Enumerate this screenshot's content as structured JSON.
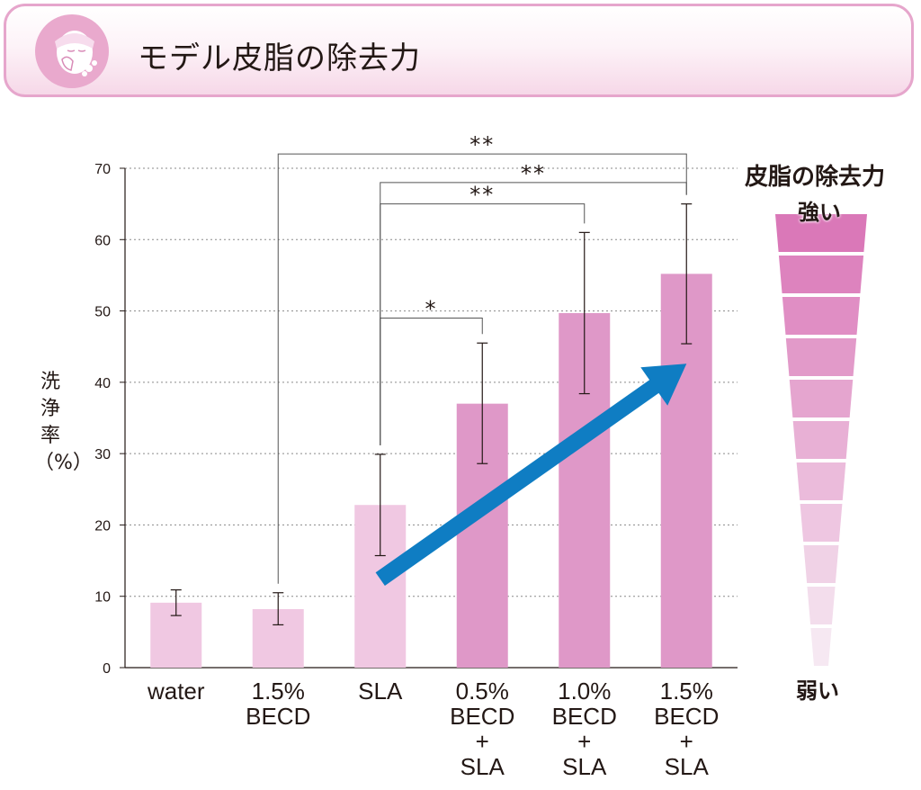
{
  "header": {
    "title": "モデル皮脂の除去力",
    "icon": "face-washing-icon"
  },
  "colors": {
    "header_border": "#e6a6cc",
    "bar_light": "#f0c8e2",
    "bar_dark": "#df98c8",
    "arrow": "#0f7dc3",
    "text": "#231815"
  },
  "chart_data": {
    "type": "bar",
    "ylabel": "洗浄率（%）",
    "ylim": [
      0,
      70
    ],
    "yticks": [
      0,
      10,
      20,
      30,
      40,
      50,
      60,
      70
    ],
    "grid": true,
    "categories": [
      [
        "water"
      ],
      [
        "1.5%",
        "BECD"
      ],
      [
        "SLA"
      ],
      [
        "0.5%",
        "BECD",
        "+",
        "SLA"
      ],
      [
        "1.0%",
        "BECD",
        "+",
        "SLA"
      ],
      [
        "1.5%",
        "BECD",
        "+",
        "SLA"
      ]
    ],
    "values": [
      9.1,
      8.2,
      22.8,
      37.0,
      49.7,
      55.2
    ],
    "error_low": [
      7.3,
      6.0,
      15.7,
      28.6,
      38.4,
      45.4
    ],
    "error_high": [
      10.9,
      10.5,
      29.9,
      45.5,
      61.0,
      65.0
    ],
    "bar_style": [
      "light",
      "light",
      "light",
      "dark",
      "dark",
      "dark"
    ],
    "significance": [
      {
        "from": 2,
        "to": 3,
        "label": "*",
        "level": 49
      },
      {
        "from": 2,
        "to": 4,
        "label": "**",
        "level": 65
      },
      {
        "from": 2,
        "to": 5,
        "label": "**",
        "level": 68
      },
      {
        "from": 1,
        "to": 5,
        "label": "**",
        "level": 72
      }
    ],
    "trend_arrow": {
      "from": {
        "x": 2,
        "y": 12.4
      },
      "to": {
        "x": 5,
        "y": 42.6
      }
    }
  },
  "scale": {
    "title": "皮脂の除去力",
    "strong_label": "強い",
    "weak_label": "弱い",
    "segments": 11
  }
}
